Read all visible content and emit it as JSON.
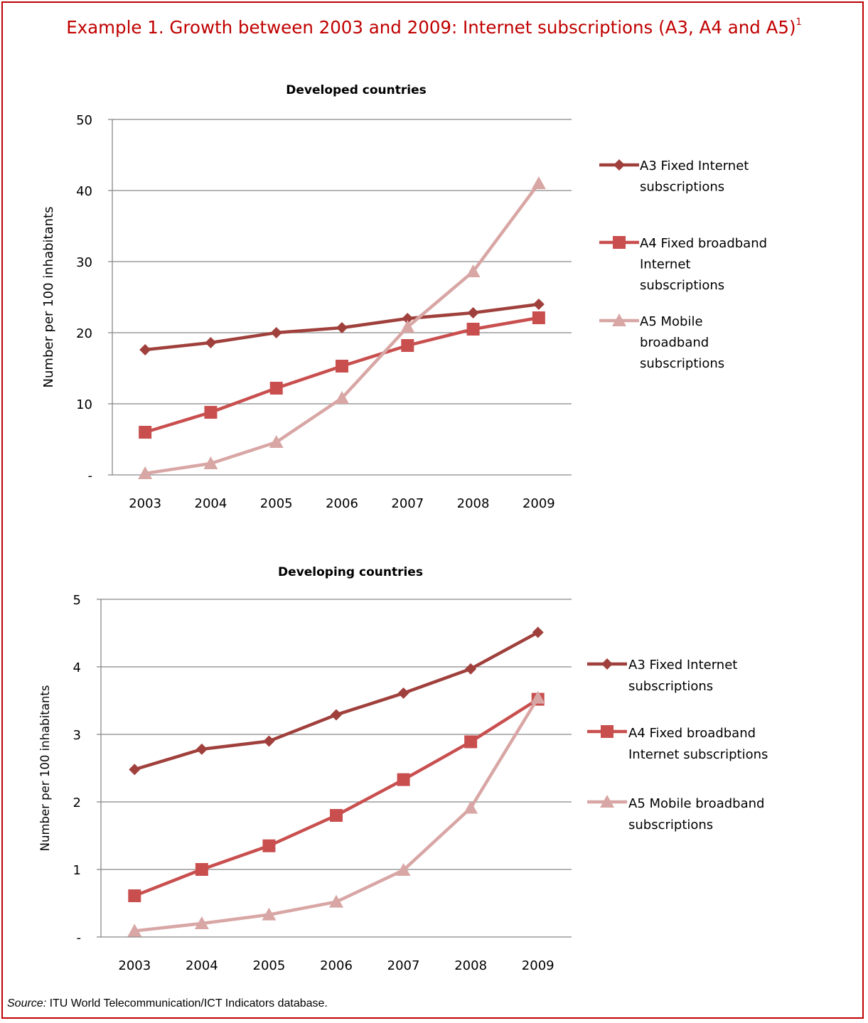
{
  "page": {
    "title": "Example 1. Growth between 2003 and 2009: Internet subscriptions (A3, A4 and A5)",
    "title_footnote": "1",
    "source_label": "Source:",
    "source_text": " ITU World Telecommunication/ICT Indicators database."
  },
  "colors": {
    "frame": "#c00000",
    "title": "#c00000",
    "A3": "#a0403c",
    "A4": "#c94f4f",
    "A5": "#d8a6a4",
    "grid": "#888888"
  },
  "chart_data": [
    {
      "type": "line",
      "title": "Developed countries",
      "ylabel": "Number per 100 inhabitants",
      "xlabel": "",
      "ylim": [
        0,
        50
      ],
      "yticks": [
        "-",
        "10",
        "20",
        "30",
        "40",
        "50"
      ],
      "grid": true,
      "legend": "right",
      "x": [
        "2003",
        "2004",
        "2005",
        "2006",
        "2007",
        "2008",
        "2009"
      ],
      "series": [
        {
          "name": "A3 Fixed Internet subscriptions",
          "legend_lines": [
            "A3 Fixed Internet",
            "subscriptions"
          ],
          "marker": "diamond",
          "color": "#a0403c",
          "values": [
            17.6,
            18.6,
            20.0,
            20.7,
            22.0,
            22.8,
            24.0
          ]
        },
        {
          "name": "A4 Fixed broadband Internet subscriptions",
          "legend_lines": [
            "A4 Fixed broadband",
            "Internet",
            "subscriptions"
          ],
          "marker": "square",
          "color": "#c94f4f",
          "values": [
            6.0,
            8.8,
            12.2,
            15.3,
            18.2,
            20.5,
            22.1
          ]
        },
        {
          "name": "A5 Mobile broadband subscriptions",
          "legend_lines": [
            "A5 Mobile",
            "broadband",
            "subscriptions"
          ],
          "marker": "triangle",
          "color": "#d8a6a4",
          "values": [
            0.2,
            1.6,
            4.6,
            10.8,
            20.8,
            28.6,
            41.0
          ]
        }
      ]
    },
    {
      "type": "line",
      "title": "Developing countries",
      "ylabel": "Number per 100 inhabitants",
      "xlabel": "",
      "ylim": [
        0,
        5
      ],
      "yticks": [
        "-",
        "1",
        "2",
        "3",
        "4",
        "5"
      ],
      "grid": true,
      "legend": "right",
      "x": [
        "2003",
        "2004",
        "2005",
        "2006",
        "2007",
        "2008",
        "2009"
      ],
      "series": [
        {
          "name": "A3 Fixed Internet subscriptions",
          "legend_lines": [
            "A3 Fixed Internet",
            "subscriptions"
          ],
          "marker": "diamond",
          "color": "#a0403c",
          "values": [
            2.48,
            2.78,
            2.9,
            3.29,
            3.61,
            3.97,
            4.51
          ]
        },
        {
          "name": "A4 Fixed broadband Internet subscriptions",
          "legend_lines": [
            "A4 Fixed broadband",
            "Internet subscriptions"
          ],
          "marker": "square",
          "color": "#c94f4f",
          "values": [
            0.61,
            1.0,
            1.35,
            1.8,
            2.33,
            2.89,
            3.52
          ]
        },
        {
          "name": "A5 Mobile broadband subscriptions",
          "legend_lines": [
            "A5 Mobile broadband",
            "subscriptions"
          ],
          "marker": "triangle",
          "color": "#d8a6a4",
          "values": [
            0.09,
            0.2,
            0.33,
            0.52,
            0.99,
            1.91,
            3.54
          ]
        }
      ]
    }
  ]
}
